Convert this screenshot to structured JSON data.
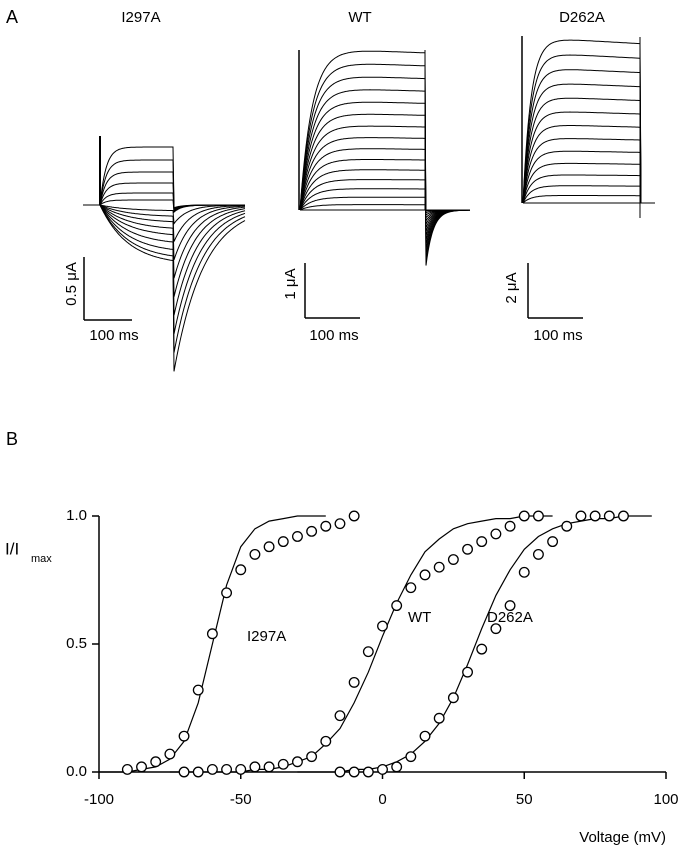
{
  "panel_a": {
    "label": "A",
    "recordings": [
      {
        "title": "I297A",
        "scale_current": "0.5 μA",
        "scale_time": "100 ms"
      },
      {
        "title": "WT",
        "scale_current": "1 μA",
        "scale_time": "100 ms"
      },
      {
        "title": "D262A",
        "scale_current": "2 μA",
        "scale_time": "100 ms"
      }
    ]
  },
  "chart_data": {
    "type": "scatter",
    "panel_label": "B",
    "xlabel": "Voltage (mV)",
    "ylabel": {
      "main": "I/I",
      "sub": "max"
    },
    "xlim": [
      -100,
      100
    ],
    "xticks": [
      -100,
      -50,
      0,
      50,
      100
    ],
    "ylim": [
      0,
      1
    ],
    "yticks": [
      {
        "value": 0,
        "label": "0.0"
      },
      0.5,
      {
        "value": 1,
        "label": "1.0"
      }
    ],
    "series": [
      {
        "name": "I297A",
        "color": "#000000",
        "x": [
          -90,
          -85,
          -80,
          -75,
          -70,
          -65,
          -60,
          -55,
          -50,
          -45,
          -40,
          -35,
          -30,
          -25,
          -20,
          -15,
          -10
        ],
        "values": [
          0.01,
          0.02,
          0.04,
          0.07,
          0.14,
          0.32,
          0.54,
          0.7,
          0.79,
          0.85,
          0.88,
          0.9,
          0.92,
          0.94,
          0.96,
          0.97,
          1.0
        ],
        "fit": {
          "x": [
            -100,
            -95,
            -90,
            -85,
            -80,
            -75,
            -70,
            -65,
            -60,
            -55,
            -50,
            -45,
            -40,
            -35,
            -30,
            -25,
            -20
          ],
          "values": [
            0,
            0,
            0,
            0.01,
            0.02,
            0.05,
            0.12,
            0.27,
            0.5,
            0.73,
            0.88,
            0.95,
            0.98,
            0.99,
            1,
            1,
            1
          ]
        }
      },
      {
        "name": "WT",
        "color": "#000000",
        "x": [
          -70,
          -65,
          -60,
          -55,
          -50,
          -45,
          -40,
          -35,
          -30,
          -25,
          -20,
          -15,
          -10,
          -5,
          0,
          5,
          10,
          15,
          20,
          25,
          30,
          35,
          40,
          45,
          50,
          55
        ],
        "values": [
          0,
          0,
          0.01,
          0.01,
          0.01,
          0.02,
          0.02,
          0.03,
          0.04,
          0.06,
          0.12,
          0.22,
          0.35,
          0.47,
          0.57,
          0.65,
          0.72,
          0.77,
          0.8,
          0.83,
          0.87,
          0.9,
          0.93,
          0.96,
          1.0,
          1.0
        ],
        "fit": {
          "x": [
            -75,
            -70,
            -65,
            -60,
            -55,
            -50,
            -45,
            -40,
            -35,
            -30,
            -25,
            -20,
            -15,
            -10,
            -5,
            0,
            5,
            10,
            15,
            20,
            25,
            30,
            35,
            40,
            45,
            50,
            55,
            60
          ],
          "values": [
            0,
            0,
            0,
            0,
            0,
            0,
            0.01,
            0.01,
            0.02,
            0.04,
            0.06,
            0.11,
            0.17,
            0.27,
            0.39,
            0.53,
            0.66,
            0.77,
            0.86,
            0.91,
            0.95,
            0.97,
            0.98,
            0.99,
            0.99,
            1,
            1,
            1
          ]
        }
      },
      {
        "name": "D262A",
        "color": "#000000",
        "x": [
          -15,
          -10,
          -5,
          0,
          5,
          10,
          15,
          20,
          25,
          30,
          35,
          40,
          45,
          50,
          55,
          60,
          65,
          70,
          75,
          80,
          85
        ],
        "values": [
          0,
          0,
          0,
          0.01,
          0.02,
          0.06,
          0.14,
          0.21,
          0.29,
          0.39,
          0.48,
          0.56,
          0.65,
          0.78,
          0.85,
          0.9,
          0.96,
          1.0,
          1.0,
          1.0,
          1.0
        ],
        "fit": {
          "x": [
            -30,
            -25,
            -20,
            -15,
            -10,
            -5,
            0,
            5,
            10,
            15,
            20,
            25,
            30,
            35,
            40,
            45,
            50,
            55,
            60,
            65,
            70,
            75,
            80,
            85,
            90,
            95
          ],
          "values": [
            0,
            0,
            0,
            0,
            0.01,
            0.01,
            0.02,
            0.04,
            0.07,
            0.12,
            0.19,
            0.29,
            0.42,
            0.56,
            0.69,
            0.79,
            0.87,
            0.92,
            0.95,
            0.97,
            0.98,
            0.99,
            0.99,
            1,
            1,
            1
          ]
        }
      }
    ]
  }
}
